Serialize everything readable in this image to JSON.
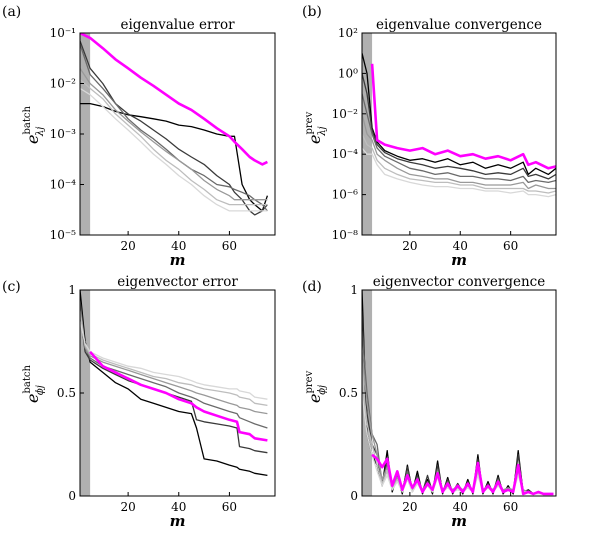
{
  "figure": {
    "grays": [
      "#000000",
      "#3a3a3a",
      "#6a6a6a",
      "#999999",
      "#bdbdbd",
      "#d8d8d8"
    ],
    "highlight": "#ff00ff",
    "shade": "#b0b0b0"
  },
  "chart_data": [
    {
      "type": "line",
      "panel_label": "(a)",
      "title": "eigenvalue error",
      "xlabel": "m",
      "ylabel": "e",
      "ylabel_sup": "batch",
      "ylabel_sub": "λ_j",
      "yscale": "log",
      "xlim": [
        1,
        78
      ],
      "ylim": [
        1e-05,
        0.1
      ],
      "xticks": [
        20,
        40,
        60
      ],
      "xtick_labels": [
        "20",
        "40",
        "60"
      ],
      "yticks": [
        1e-05,
        0.0001,
        0.001,
        0.01,
        0.1
      ],
      "ytick_labels": [
        "10⁻⁵",
        "10⁻⁴",
        "10⁻³",
        "10⁻²",
        "10⁻¹"
      ],
      "shaded_range": [
        1,
        5
      ],
      "x": [
        1,
        5,
        10,
        15,
        20,
        25,
        30,
        35,
        40,
        45,
        50,
        55,
        60,
        62,
        65,
        68,
        70,
        73,
        75
      ],
      "series": [
        {
          "color_index": 0,
          "values": [
            0.004,
            0.004,
            0.0035,
            0.0028,
            0.0024,
            0.0022,
            0.002,
            0.0018,
            0.0015,
            0.0014,
            0.0012,
            0.001,
            0.0009,
            0.0009,
            0.0001,
            5e-05,
            4e-05,
            3e-05,
            6e-05
          ]
        },
        {
          "color_index": 1,
          "values": [
            0.07,
            0.02,
            0.01,
            0.004,
            0.0025,
            0.0018,
            0.0012,
            0.0008,
            0.0005,
            0.00035,
            0.00025,
            0.00015,
            0.0001,
            7e-05,
            5e-05,
            3e-05,
            2.5e-05,
            3e-05,
            4e-05
          ]
        },
        {
          "color_index": 2,
          "values": [
            0.06,
            0.015,
            0.008,
            0.004,
            0.002,
            0.0012,
            0.0008,
            0.0005,
            0.0003,
            0.0002,
            0.00015,
            0.0001,
            9e-05,
            8e-05,
            7e-05,
            6e-05,
            5e-05,
            4e-05,
            3e-05
          ]
        },
        {
          "color_index": 3,
          "values": [
            0.02,
            0.01,
            0.006,
            0.003,
            0.0018,
            0.0011,
            0.0007,
            0.00045,
            0.0003,
            0.0002,
            0.00012,
            8e-05,
            6e-05,
            5e-05,
            5e-05,
            5e-05,
            5e-05,
            5e-05,
            5e-05
          ]
        },
        {
          "color_index": 4,
          "values": [
            0.012,
            0.008,
            0.005,
            0.0025,
            0.0015,
            0.0009,
            0.0005,
            0.0003,
            0.0002,
            0.00012,
            8e-05,
            5e-05,
            4e-05,
            4e-05,
            4e-05,
            4e-05,
            4e-05,
            4e-05,
            4e-05
          ]
        },
        {
          "color_index": 5,
          "values": [
            0.008,
            0.006,
            0.0035,
            0.002,
            0.0012,
            0.0007,
            0.0004,
            0.00025,
            0.00015,
            0.0001,
            6e-05,
            4e-05,
            3e-05,
            3e-05,
            3e-05,
            3e-05,
            3e-05,
            3e-05,
            3e-05
          ]
        },
        {
          "color_index": -1,
          "values": [
            0.1,
            0.08,
            0.05,
            0.03,
            0.02,
            0.013,
            0.009,
            0.006,
            0.004,
            0.003,
            0.002,
            0.0013,
            0.0009,
            0.0007,
            0.0005,
            0.00035,
            0.0003,
            0.00025,
            0.00028
          ]
        }
      ]
    },
    {
      "type": "line",
      "panel_label": "(b)",
      "title": "eigenvalue convergence",
      "xlabel": "m",
      "ylabel": "e",
      "ylabel_sup": "prev",
      "ylabel_sub": "λ_j",
      "yscale": "log",
      "xlim": [
        1,
        78
      ],
      "ylim": [
        1e-08,
        100
      ],
      "xticks": [
        20,
        40,
        60
      ],
      "xtick_labels": [
        "20",
        "40",
        "60"
      ],
      "yticks": [
        1e-08,
        1e-06,
        0.0001,
        0.01,
        1,
        100
      ],
      "ytick_labels": [
        "10⁻⁸",
        "10⁻⁶",
        "10⁻⁴",
        "10⁻²",
        "10⁰",
        "10²"
      ],
      "shaded_range": [
        1,
        5
      ],
      "x": [
        1,
        3,
        5,
        7,
        10,
        15,
        20,
        25,
        30,
        35,
        40,
        45,
        50,
        55,
        60,
        65,
        67,
        70,
        75,
        78
      ],
      "series": [
        {
          "color_index": 0,
          "values": [
            10,
            1,
            0.002,
            0.0004,
            0.00015,
            8e-05,
            5e-05,
            6e-05,
            4e-05,
            6e-05,
            3e-05,
            4e-05,
            2e-05,
            3e-05,
            2e-05,
            4e-05,
            1e-05,
            2e-05,
            1e-05,
            2e-05
          ]
        },
        {
          "color_index": 1,
          "values": [
            1,
            0.1,
            0.0015,
            0.0003,
            0.00012,
            6e-05,
            4e-05,
            3e-05,
            2e-05,
            2.5e-05,
            2e-05,
            1.5e-05,
            1e-05,
            1.2e-05,
            1e-05,
            2e-05,
            8e-06,
            1e-05,
            6e-06,
            1e-05
          ]
        },
        {
          "color_index": 2,
          "values": [
            0.1,
            0.01,
            0.001,
            0.0002,
            8e-05,
            4e-05,
            2e-05,
            1.5e-05,
            1e-05,
            1.2e-05,
            8e-06,
            8e-06,
            6e-06,
            6e-06,
            5e-06,
            8e-06,
            4e-06,
            5e-06,
            4e-06,
            5e-06
          ]
        },
        {
          "color_index": 3,
          "values": [
            0.01,
            0.001,
            0.0005,
            0.0001,
            5e-05,
            2e-05,
            1e-05,
            8e-06,
            6e-06,
            6e-06,
            4e-06,
            4e-06,
            3e-06,
            3e-06,
            3e-06,
            4e-06,
            2e-06,
            3e-06,
            2e-06,
            2e-06
          ]
        },
        {
          "color_index": 4,
          "values": [
            0.001,
            0.0003,
            0.0002,
            5e-05,
            2e-05,
            1e-05,
            6e-06,
            5e-06,
            4e-06,
            4e-06,
            3e-06,
            3e-06,
            2e-06,
            2e-06,
            2e-06,
            2e-06,
            1.5e-06,
            1.5e-06,
            1.2e-06,
            1.5e-06
          ]
        },
        {
          "color_index": 5,
          "values": [
            0.0002,
            0.0001,
            0.0001,
            3e-05,
            1e-05,
            6e-06,
            4e-06,
            3e-06,
            2.5e-06,
            2.5e-06,
            2e-06,
            2e-06,
            1.5e-06,
            1.5e-06,
            1.2e-06,
            1.5e-06,
            1e-06,
            1e-06,
            8e-07,
            1e-06
          ]
        },
        {
          "color_index": -1,
          "values": [
            null,
            null,
            3,
            0.0005,
            0.0003,
            0.0002,
            0.00015,
            0.0002,
            0.0001,
            0.00015,
            8e-05,
            0.0001,
            6e-05,
            8e-05,
            5e-05,
            0.0001,
            3e-05,
            4e-05,
            2e-05,
            2.5e-05
          ]
        }
      ]
    },
    {
      "type": "line",
      "panel_label": "(c)",
      "title": "eigenvector error",
      "xlabel": "m",
      "ylabel": "e",
      "ylabel_sup": "batch",
      "ylabel_sub": "ϕ_j",
      "yscale": "linear",
      "xlim": [
        1,
        78
      ],
      "ylim": [
        0,
        1
      ],
      "xticks": [
        20,
        40,
        60
      ],
      "xtick_labels": [
        "20",
        "40",
        "60"
      ],
      "yticks": [
        0,
        0.5,
        1
      ],
      "ytick_labels": [
        "0",
        "0.5",
        "1"
      ],
      "shaded_range": [
        1,
        5
      ],
      "x": [
        1,
        3,
        5,
        10,
        15,
        20,
        25,
        30,
        35,
        40,
        45,
        47,
        50,
        55,
        60,
        63,
        64,
        68,
        70,
        75
      ],
      "series": [
        {
          "color_index": 0,
          "values": [
            1,
            0.75,
            0.65,
            0.6,
            0.55,
            0.52,
            0.47,
            0.45,
            0.43,
            0.41,
            0.4,
            0.33,
            0.18,
            0.17,
            0.15,
            0.14,
            0.13,
            0.12,
            0.11,
            0.1
          ]
        },
        {
          "color_index": 1,
          "values": [
            0.9,
            0.7,
            0.66,
            0.62,
            0.59,
            0.56,
            0.54,
            0.52,
            0.5,
            0.48,
            0.46,
            0.37,
            0.36,
            0.35,
            0.34,
            0.33,
            0.24,
            0.23,
            0.22,
            0.21
          ]
        },
        {
          "color_index": 2,
          "values": [
            0.95,
            0.72,
            0.67,
            0.63,
            0.61,
            0.59,
            0.57,
            0.55,
            0.53,
            0.5,
            0.48,
            0.47,
            0.45,
            0.43,
            0.41,
            0.4,
            0.38,
            0.36,
            0.35,
            0.33
          ]
        },
        {
          "color_index": 3,
          "values": [
            0.9,
            0.72,
            0.68,
            0.65,
            0.63,
            0.61,
            0.59,
            0.57,
            0.55,
            0.53,
            0.51,
            0.5,
            0.49,
            0.47,
            0.45,
            0.44,
            0.43,
            0.42,
            0.41,
            0.4
          ]
        },
        {
          "color_index": 4,
          "values": [
            0.9,
            0.73,
            0.69,
            0.66,
            0.64,
            0.62,
            0.6,
            0.58,
            0.57,
            0.55,
            0.54,
            0.53,
            0.52,
            0.51,
            0.5,
            0.49,
            0.48,
            0.47,
            0.45,
            0.44
          ]
        },
        {
          "color_index": 5,
          "values": [
            0.85,
            0.74,
            0.7,
            0.67,
            0.65,
            0.63,
            0.62,
            0.6,
            0.59,
            0.58,
            0.56,
            0.55,
            0.54,
            0.53,
            0.52,
            0.52,
            0.51,
            0.5,
            0.48,
            0.47
          ]
        },
        {
          "color_index": -1,
          "values": [
            null,
            null,
            0.7,
            0.63,
            0.6,
            0.57,
            0.54,
            0.52,
            0.5,
            0.47,
            0.45,
            0.43,
            0.41,
            0.39,
            0.37,
            0.36,
            0.31,
            0.3,
            0.28,
            0.27
          ]
        }
      ]
    },
    {
      "type": "line",
      "panel_label": "(d)",
      "title": "eigenvector convergence",
      "xlabel": "m",
      "ylabel": "e",
      "ylabel_sup": "prev",
      "ylabel_sub": "ϕ_j",
      "yscale": "linear",
      "xlim": [
        1,
        78
      ],
      "ylim": [
        0,
        1
      ],
      "xticks": [
        20,
        40,
        60
      ],
      "xtick_labels": [
        "20",
        "40",
        "60"
      ],
      "yticks": [
        0,
        0.5,
        1
      ],
      "ytick_labels": [
        "0",
        "0.5",
        "1"
      ],
      "shaded_range": [
        1,
        5
      ],
      "x": [
        1,
        3,
        5,
        7,
        9,
        11,
        13,
        15,
        17,
        19,
        21,
        23,
        25,
        27,
        29,
        31,
        33,
        35,
        37,
        39,
        41,
        43,
        45,
        47,
        49,
        51,
        53,
        55,
        57,
        59,
        61,
        63,
        65,
        67,
        69,
        71,
        73,
        75,
        77
      ],
      "series": [
        {
          "color_index": 0,
          "values": [
            1,
            0.3,
            0.2,
            0.15,
            0.05,
            0.22,
            0.02,
            0.1,
            0.01,
            0.15,
            0.02,
            0.12,
            0.01,
            0.08,
            0.01,
            0.17,
            0.01,
            0.09,
            0.01,
            0.06,
            0.01,
            0.08,
            0.01,
            0.2,
            0.01,
            0.07,
            0.01,
            0.1,
            0.01,
            0.05,
            0.01,
            0.22,
            0.01,
            0.03,
            0.01,
            0.02,
            0.01,
            0.01,
            0.01
          ]
        },
        {
          "color_index": 1,
          "values": [
            0.9,
            0.4,
            0.25,
            0.2,
            0.05,
            0.18,
            0.03,
            0.12,
            0.02,
            0.14,
            0.03,
            0.1,
            0.02,
            0.1,
            0.02,
            0.15,
            0.02,
            0.08,
            0.02,
            0.06,
            0.02,
            0.07,
            0.02,
            0.18,
            0.02,
            0.06,
            0.02,
            0.09,
            0.02,
            0.04,
            0.02,
            0.2,
            0.02,
            0.03,
            0.01,
            0.02,
            0.01,
            0.01,
            0.01
          ]
        },
        {
          "color_index": 2,
          "values": [
            0.8,
            0.5,
            0.3,
            0.25,
            0.06,
            0.15,
            0.03,
            0.1,
            0.02,
            0.12,
            0.02,
            0.09,
            0.02,
            0.07,
            0.02,
            0.13,
            0.02,
            0.07,
            0.02,
            0.05,
            0.02,
            0.06,
            0.02,
            0.16,
            0.02,
            0.05,
            0.02,
            0.08,
            0.02,
            0.04,
            0.02,
            0.15,
            0.02,
            0.02,
            0.01,
            0.02,
            0.01,
            0.01,
            0.01
          ]
        },
        {
          "color_index": 3,
          "values": [
            0.7,
            0.45,
            0.3,
            0.2,
            0.08,
            0.14,
            0.04,
            0.09,
            0.03,
            0.1,
            0.03,
            0.08,
            0.03,
            0.06,
            0.03,
            0.12,
            0.03,
            0.06,
            0.03,
            0.05,
            0.03,
            0.05,
            0.03,
            0.14,
            0.03,
            0.05,
            0.03,
            0.07,
            0.03,
            0.04,
            0.03,
            0.14,
            0.03,
            0.02,
            0.01,
            0.02,
            0.01,
            0.01,
            0.01
          ]
        },
        {
          "color_index": 4,
          "values": [
            0.6,
            0.35,
            0.25,
            0.15,
            0.06,
            0.12,
            0.03,
            0.08,
            0.02,
            0.09,
            0.02,
            0.07,
            0.02,
            0.05,
            0.02,
            0.1,
            0.02,
            0.05,
            0.02,
            0.04,
            0.02,
            0.04,
            0.02,
            0.12,
            0.02,
            0.04,
            0.02,
            0.06,
            0.02,
            0.03,
            0.02,
            0.12,
            0.02,
            0.02,
            0.01,
            0.02,
            0.01,
            0.01,
            0.01
          ]
        },
        {
          "color_index": 5,
          "values": [
            0.5,
            0.3,
            0.2,
            0.12,
            0.05,
            0.1,
            0.03,
            0.07,
            0.02,
            0.08,
            0.02,
            0.06,
            0.02,
            0.05,
            0.02,
            0.09,
            0.02,
            0.04,
            0.02,
            0.03,
            0.02,
            0.04,
            0.02,
            0.1,
            0.02,
            0.04,
            0.02,
            0.05,
            0.02,
            0.03,
            0.02,
            0.1,
            0.02,
            0.02,
            0.01,
            0.01,
            0.01,
            0.01,
            0.01
          ]
        },
        {
          "color_index": -1,
          "values": [
            null,
            null,
            0.2,
            0.18,
            0.14,
            0.18,
            0.05,
            0.12,
            0.03,
            0.1,
            0.04,
            0.08,
            0.02,
            0.06,
            0.03,
            0.11,
            0.02,
            0.06,
            0.02,
            0.05,
            0.02,
            0.06,
            0.02,
            0.16,
            0.02,
            0.05,
            0.02,
            0.07,
            0.02,
            0.03,
            0.02,
            0.15,
            0.01,
            0.02,
            0.01,
            0.02,
            0.01,
            0.01,
            0.01
          ]
        }
      ]
    }
  ]
}
